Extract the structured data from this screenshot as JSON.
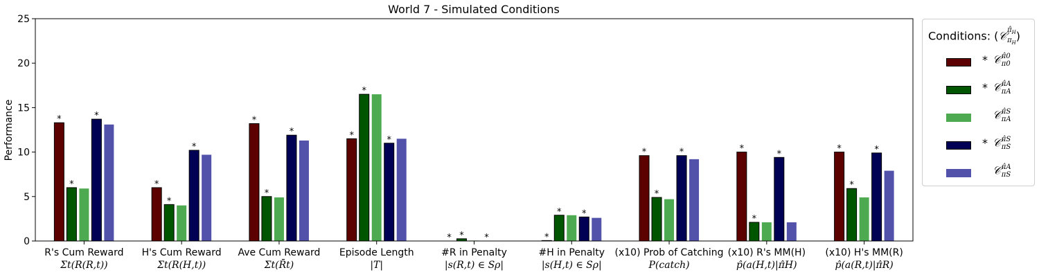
{
  "chart_data": {
    "type": "bar",
    "title": "World 7 - Simulated Conditions",
    "ylabel": "Performance",
    "ylim": [
      0,
      25
    ],
    "yticks": [
      0,
      5,
      10,
      15,
      20,
      25
    ],
    "grid": false,
    "legend_position": "outside-right",
    "legend_title": "Conditions: (𝒞 π̂H / πH)",
    "categories": [
      {
        "line1": "R's Cum Reward",
        "line2": "Σt(R(R,t))"
      },
      {
        "line1": "H's Cum Reward",
        "line2": "Σt(R(H,t))"
      },
      {
        "line1": "Ave Cum Reward",
        "line2": "Σt(R̄t)"
      },
      {
        "line1": "Episode Length",
        "line2": "|T|"
      },
      {
        "line1": "#R in Penalty",
        "line2": "|s(R,t) ∈ Sρ|"
      },
      {
        "line1": "#H in Penalty",
        "line2": "|s(H,t) ∈ Sρ|"
      },
      {
        "line1": "(x10) Prob of Catching",
        "line2": "P(catch)"
      },
      {
        "line1": "(x10) R's MM(H)",
        "line2": "p̂(a(H,t)|π̂H)"
      },
      {
        "line1": "(x10) H's MM(R)",
        "line2": "p̂(a(R,t)|π̂R)"
      }
    ],
    "series": [
      {
        "name": "* 𝒞 π̂0 / π0",
        "star": true,
        "sup": "π̂0",
        "sub": "π0",
        "color": "#5c0000",
        "values": [
          13.3,
          6.0,
          13.2,
          11.5,
          0.0,
          0.05,
          9.6,
          10.0,
          10.0
        ],
        "asterisks": [
          true,
          true,
          true,
          true,
          true,
          true,
          true,
          true,
          true
        ]
      },
      {
        "name": "* 𝒞 π̂A / πA",
        "star": true,
        "sup": "π̂A",
        "sub": "πA",
        "color": "#005500",
        "values": [
          6.0,
          4.1,
          5.0,
          16.5,
          0.25,
          2.9,
          4.9,
          2.1,
          5.9
        ],
        "asterisks": [
          true,
          true,
          true,
          true,
          true,
          true,
          true,
          true,
          true
        ]
      },
      {
        "name": "𝒞 π̂S / πA",
        "star": false,
        "sup": "π̂S",
        "sub": "πA",
        "color": "#4daa50",
        "values": [
          5.9,
          4.0,
          4.9,
          16.5,
          0.05,
          2.9,
          4.7,
          2.1,
          4.9
        ],
        "asterisks": [
          false,
          false,
          false,
          false,
          false,
          false,
          false,
          false,
          false
        ]
      },
      {
        "name": "* 𝒞 π̂S / πS",
        "star": true,
        "sup": "π̂S",
        "sub": "πS",
        "color": "#000055",
        "values": [
          13.7,
          10.2,
          11.9,
          11.0,
          0.0,
          2.7,
          9.6,
          9.4,
          9.9
        ],
        "asterisks": [
          true,
          true,
          true,
          true,
          true,
          true,
          true,
          true,
          true
        ]
      },
      {
        "name": "𝒞 π̂A / πS",
        "star": false,
        "sup": "π̂A",
        "sub": "πS",
        "color": "#5252aa",
        "values": [
          13.1,
          9.7,
          11.3,
          11.5,
          0.0,
          2.6,
          9.2,
          2.1,
          7.9
        ],
        "asterisks": [
          false,
          false,
          false,
          false,
          false,
          false,
          false,
          false,
          false
        ]
      }
    ]
  }
}
